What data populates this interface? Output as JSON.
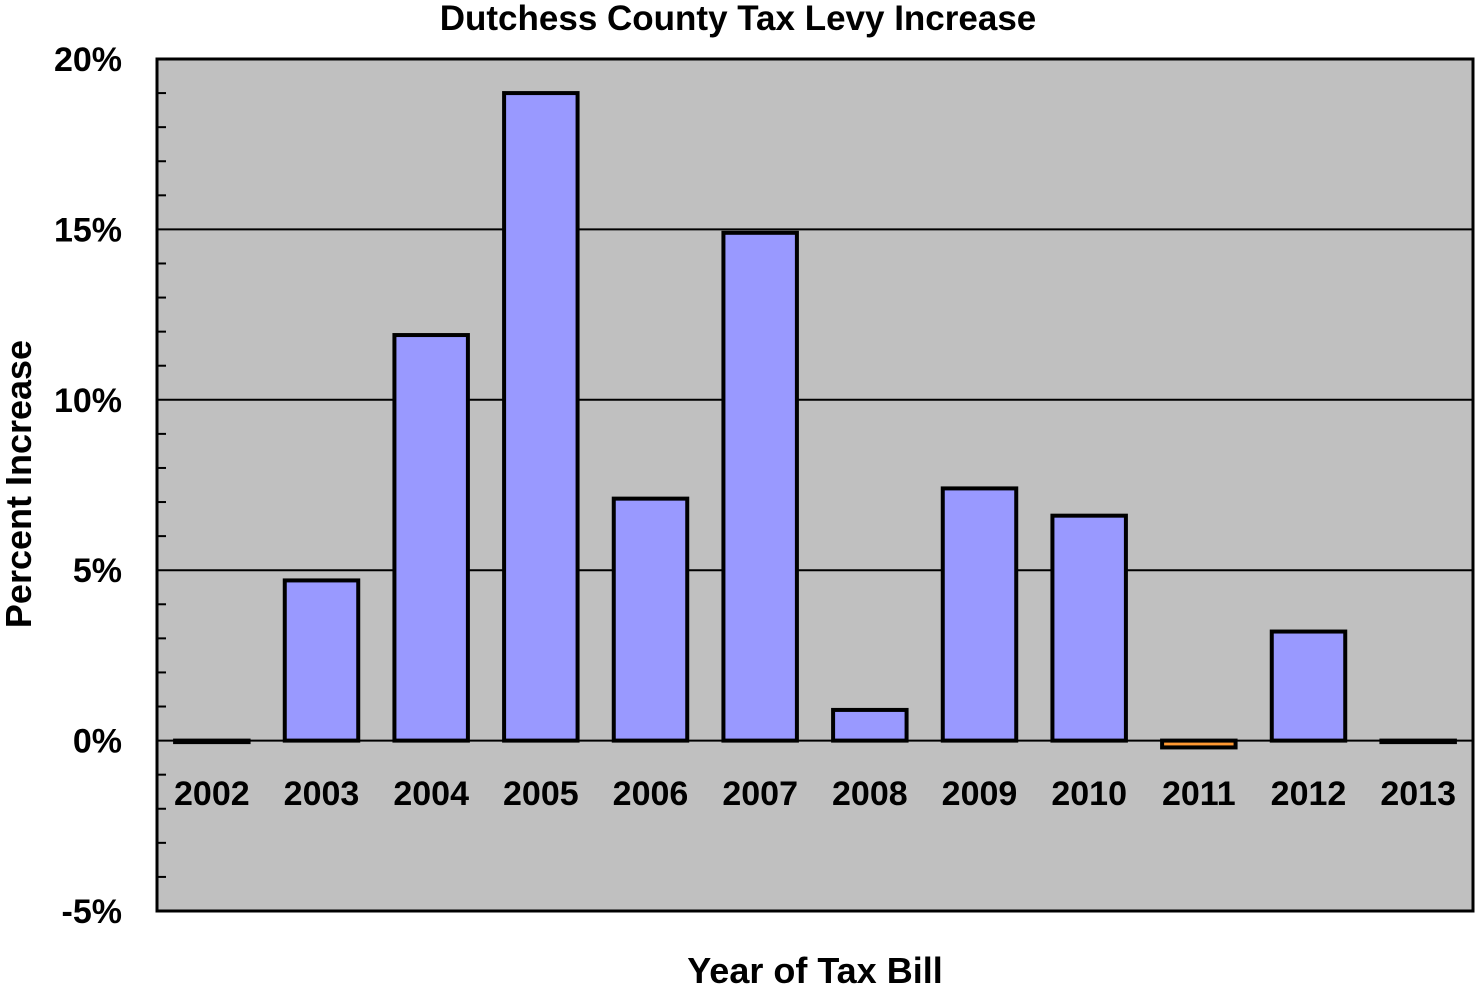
{
  "chart_data": {
    "type": "bar",
    "title": "Dutchess County Tax Levy Increase",
    "xlabel": "Year of Tax Bill",
    "ylabel": "Percent Increase",
    "categories": [
      "2002",
      "2003",
      "2004",
      "2005",
      "2006",
      "2007",
      "2008",
      "2009",
      "2010",
      "2011",
      "2012",
      "2013"
    ],
    "values": [
      0.0,
      4.7,
      11.9,
      19.0,
      7.1,
      14.9,
      0.9,
      7.4,
      6.6,
      -0.2,
      3.2,
      0.0
    ],
    "ylim": [
      -5,
      20
    ],
    "yticks": [
      -5,
      0,
      5,
      10,
      15,
      20
    ],
    "ytick_labels": [
      "-5%",
      "0%",
      "5%",
      "10%",
      "15%",
      "20%"
    ],
    "grid": true,
    "legend": "none",
    "colors": {
      "plot_background": "#c0c0c0",
      "bar_fill": "#9999ff",
      "negative_bar_fill": "#ff9933",
      "bar_outline": "#000000",
      "gridline": "#000000"
    }
  }
}
